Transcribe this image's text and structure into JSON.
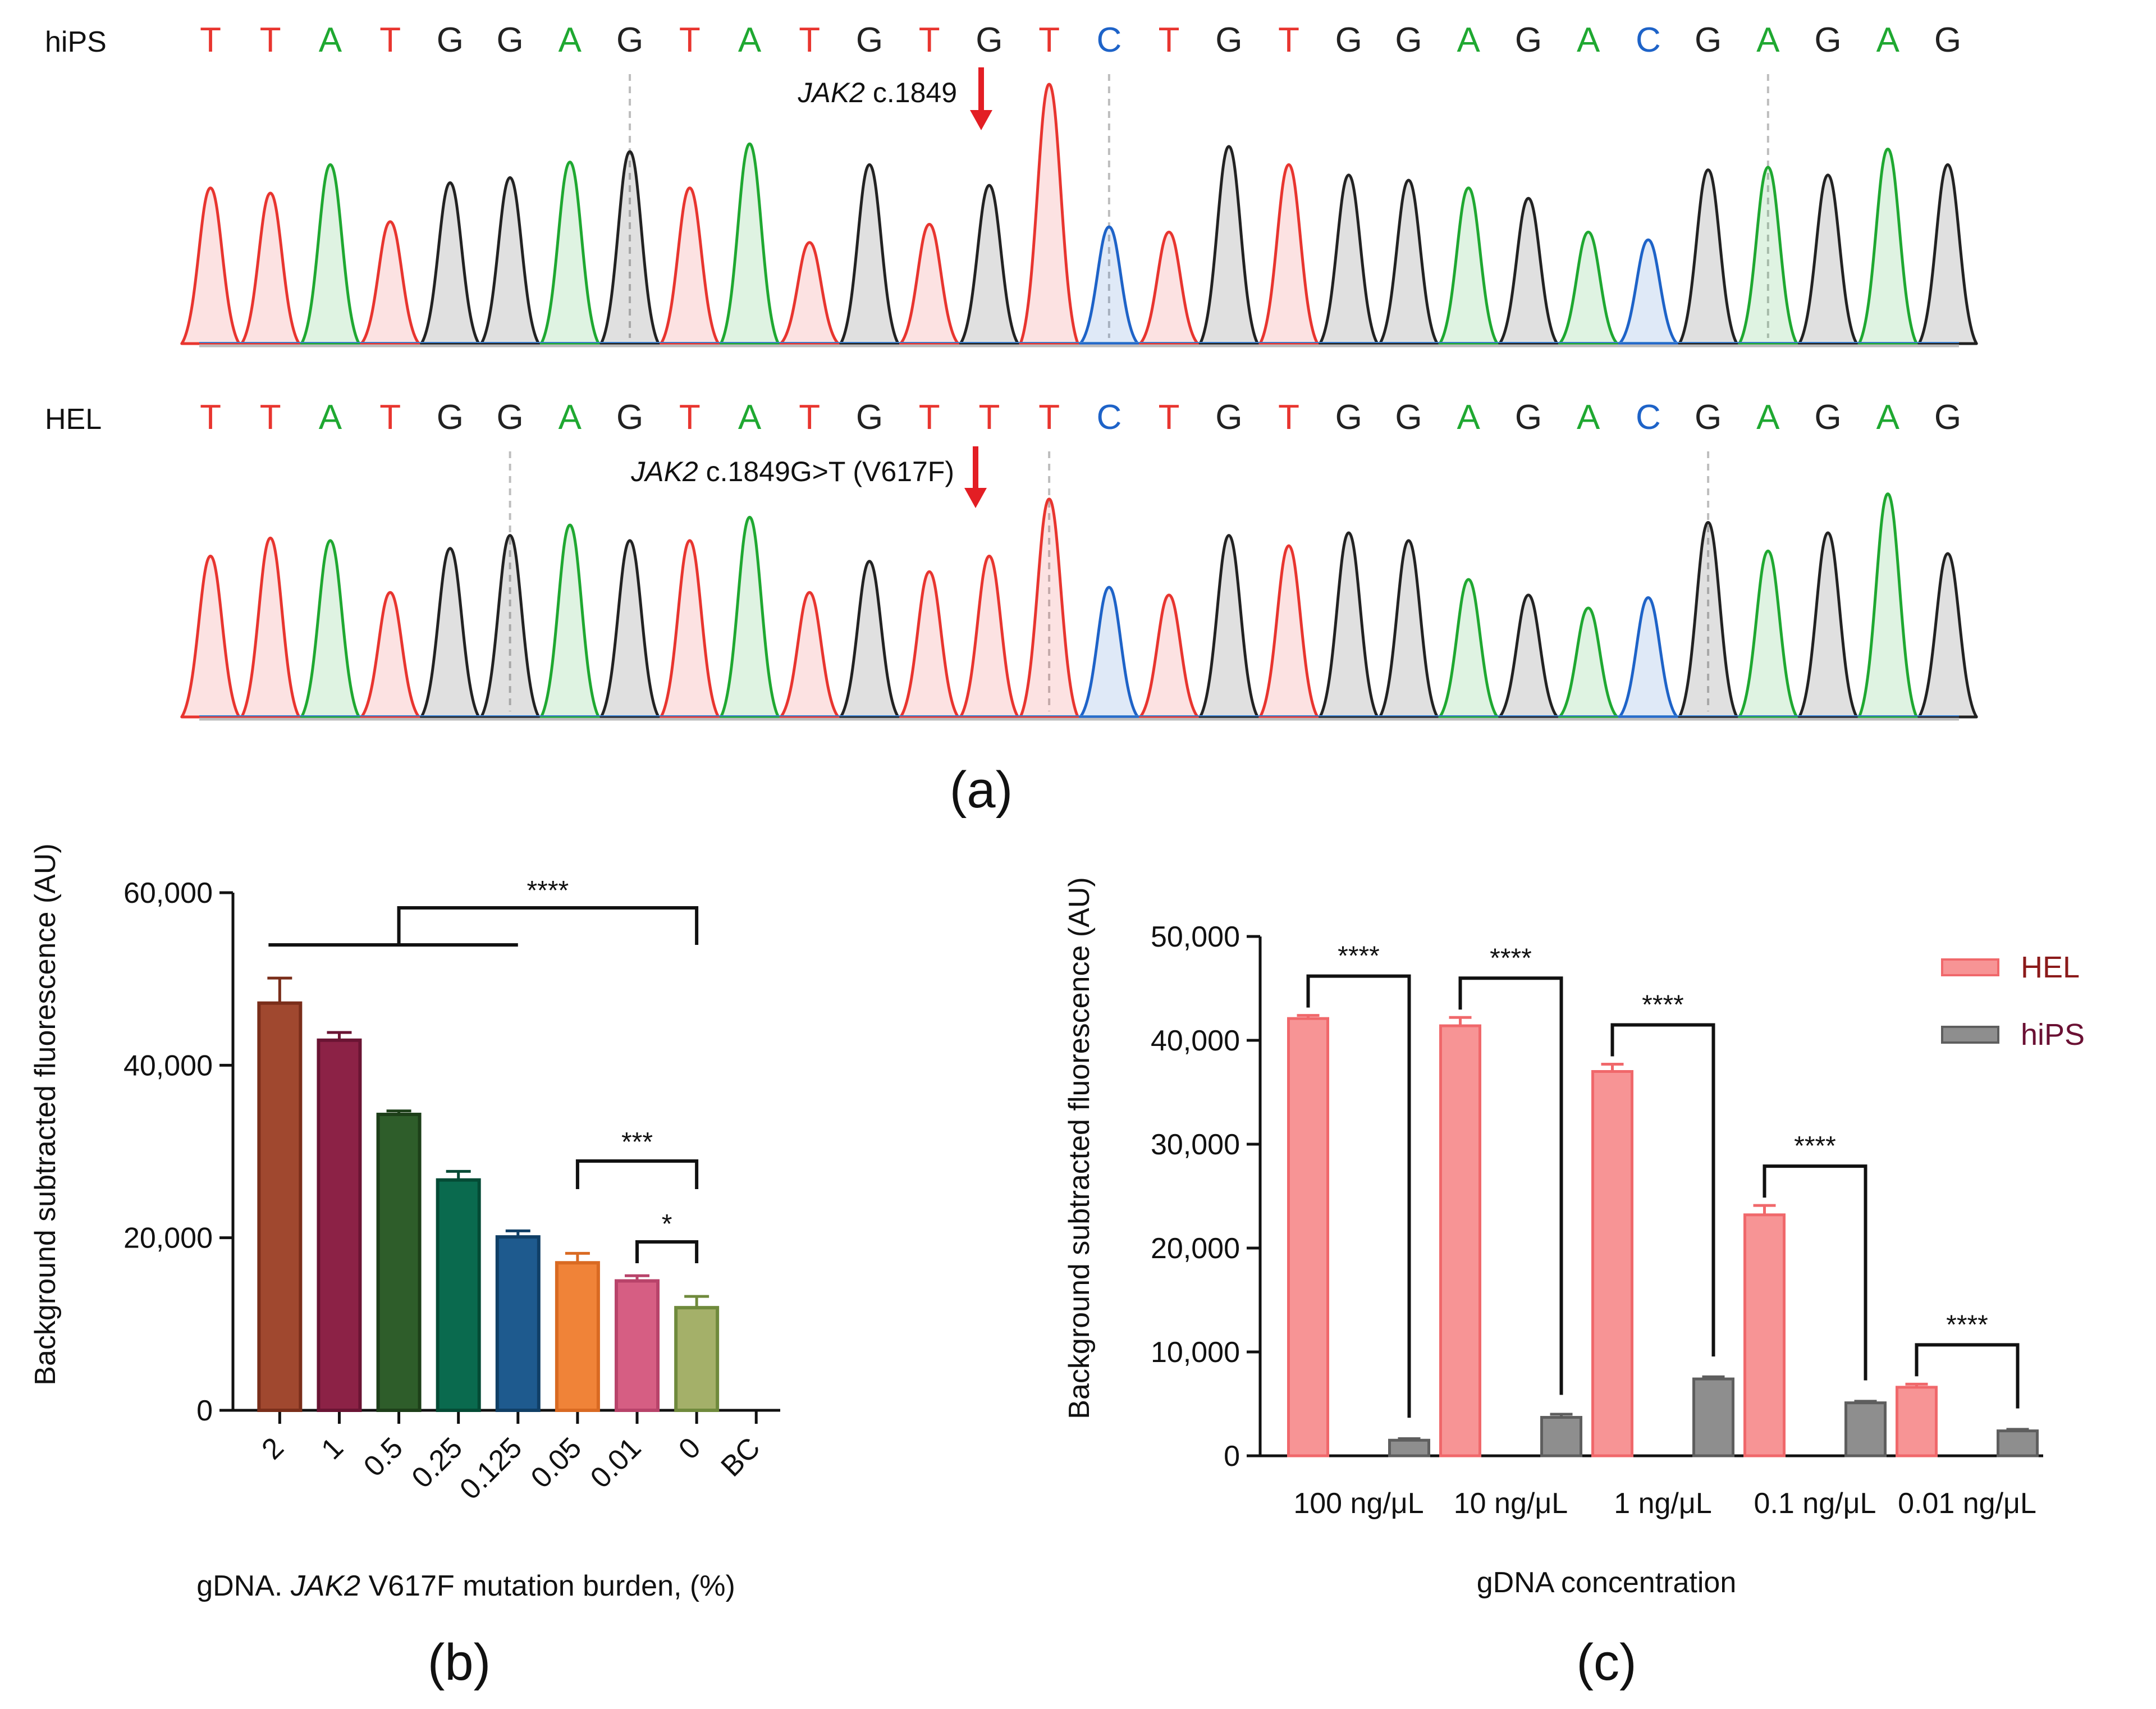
{
  "panel_a": {
    "caption": "(a)",
    "tracks": [
      {
        "name": "hiPS",
        "bases": [
          "T",
          "T",
          "A",
          "T",
          "G",
          "G",
          "A",
          "G",
          "T",
          "A",
          "T",
          "G",
          "T",
          "G",
          "T",
          "C",
          "T",
          "G",
          "T",
          "G",
          "G",
          "A",
          "G",
          "A",
          "C",
          "G",
          "A",
          "G",
          "A",
          "G"
        ],
        "annotation_gene": "JAK2",
        "annotation_rest": " c.1849",
        "dashed_marks": 3
      },
      {
        "name": "HEL",
        "bases": [
          "T",
          "T",
          "A",
          "T",
          "G",
          "G",
          "A",
          "G",
          "T",
          "A",
          "T",
          "G",
          "T",
          "T",
          "T",
          "C",
          "T",
          "G",
          "T",
          "G",
          "G",
          "A",
          "G",
          "A",
          "C",
          "G",
          "A",
          "G",
          "A",
          "G"
        ],
        "annotation_gene": "JAK2",
        "annotation_rest": " c.1849G>T (V617F)",
        "dashed_marks": 3
      }
    ],
    "base_colors": {
      "A": "#1fa831",
      "C": "#1e63c8",
      "G": "#222222",
      "T": "#e8352f"
    },
    "arrow_color": "#e31e24"
  },
  "chart_data": [
    {
      "panel": "(b)",
      "type": "bar",
      "ylabel": "Background subtracted fluorescence (AU)",
      "xlabel_prefix": "gDNA. ",
      "xlabel_gene": "JAK2",
      "xlabel_suffix": " V617F mutation burden, (%)",
      "ylim": [
        0,
        60000
      ],
      "yticks": [
        0,
        20000,
        40000,
        60000
      ],
      "ytick_labels": [
        "0",
        "20,000",
        "40,000",
        "60,000"
      ],
      "categories": [
        "2",
        "1",
        "0.5",
        "0.25",
        "0.125",
        "0.05",
        "0.01",
        "0",
        "BC"
      ],
      "values": [
        47200,
        42900,
        34300,
        26700,
        20100,
        17100,
        15000,
        11900,
        null
      ],
      "errors": [
        2900,
        900,
        400,
        1000,
        700,
        1100,
        600,
        1300,
        null
      ],
      "colors": [
        "#a0482f",
        "#8c2246",
        "#2e5d2a",
        "#0a6a4e",
        "#1e5a8e",
        "#f08338",
        "#d65e83",
        "#a4b069",
        "#ffffff"
      ],
      "edge_colors": [
        "#7a2e1a",
        "#6a1433",
        "#1d3f19",
        "#044b35",
        "#103f66",
        "#d96a22",
        "#b8436a",
        "#6f8a3c",
        "#ffffff"
      ],
      "significance": [
        {
          "label": "****",
          "from": "2-0.125 group",
          "to": "0"
        },
        {
          "label": "***",
          "from": "0.05",
          "to": "0"
        },
        {
          "label": "*",
          "from": "0.01",
          "to": "0"
        }
      ]
    },
    {
      "panel": "(c)",
      "type": "bar",
      "ylabel": "Background subtracted fluorescence (AU)",
      "xlabel": "gDNA concentration",
      "ylim": [
        0,
        50000
      ],
      "yticks": [
        0,
        10000,
        20000,
        30000,
        40000,
        50000
      ],
      "ytick_labels": [
        "0",
        "10,000",
        "20,000",
        "30,000",
        "40,000",
        "50,000"
      ],
      "categories": [
        "100 ng/μL",
        "10 ng/μL",
        "1 ng/μL",
        "0.1 ng/μL",
        "0.01 ng/μL"
      ],
      "series": [
        {
          "name": "HEL",
          "values": [
            42100,
            41400,
            37000,
            23200,
            6600
          ],
          "errors": [
            300,
            800,
            700,
            900,
            300
          ],
          "color": "#f79495",
          "edge": "#f0686b",
          "label_color": "#8b1a1a"
        },
        {
          "name": "hiPS",
          "values": [
            1500,
            3700,
            7400,
            5100,
            2400
          ],
          "errors": [
            150,
            300,
            200,
            150,
            150
          ],
          "color": "#8e8e8e",
          "edge": "#5e5e5e",
          "label_color": "#6a1033"
        }
      ],
      "significance_label": "****"
    }
  ]
}
